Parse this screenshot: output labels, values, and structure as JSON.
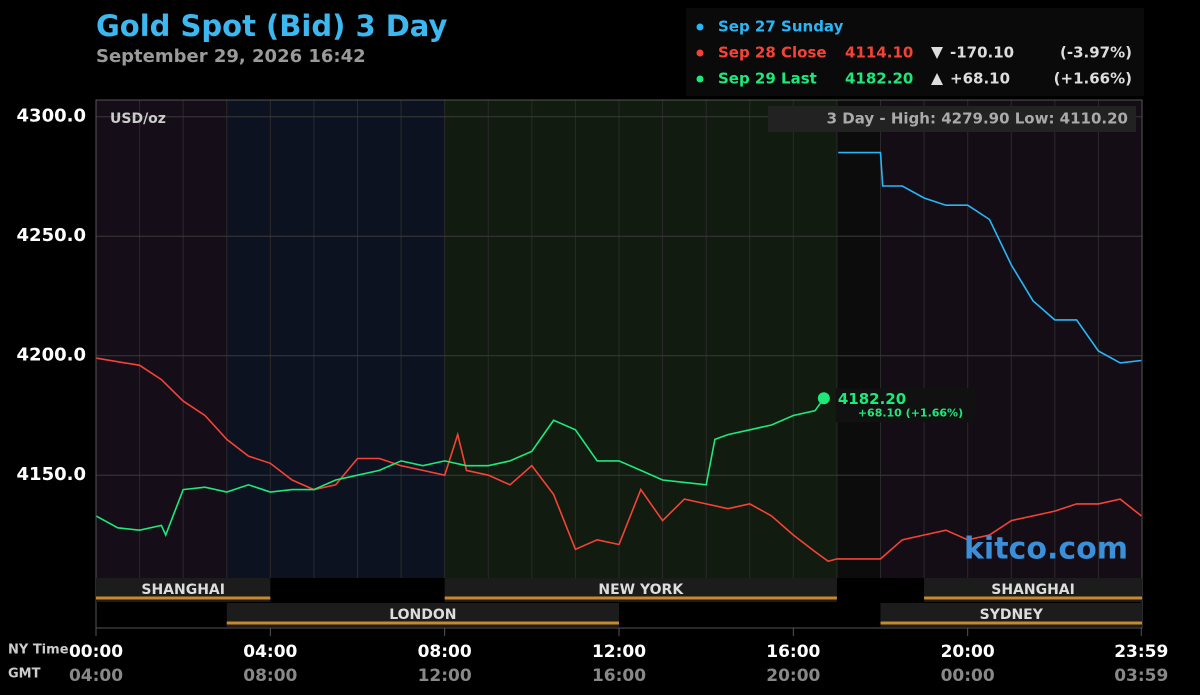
{
  "chart_data": {
    "type": "line",
    "title": "Gold Spot (Bid) 3 Day",
    "subtitle": "September 29, 2026 16:42",
    "unit_label": "USD/oz",
    "range_note": "3 Day - High: 4279.90  Low: 4110.20",
    "watermark": "kitco.com",
    "x_axis_label": "NY Time",
    "x2_axis_label": "GMT",
    "last_label": "4182.20",
    "last_change_label": "+68.10 (+1.66%)",
    "xlim": [
      0,
      24
    ],
    "ylim": [
      4107,
      4307
    ],
    "yticks": [
      {
        "value": 4300,
        "label": "4300.0"
      },
      {
        "value": 4250,
        "label": "4250.0"
      },
      {
        "value": 4200,
        "label": "4200.0"
      },
      {
        "value": 4150,
        "label": "4150.0"
      }
    ],
    "xticks": [
      {
        "value": 0,
        "label": "00:00"
      },
      {
        "value": 4,
        "label": "04:00"
      },
      {
        "value": 8,
        "label": "08:00"
      },
      {
        "value": 12,
        "label": "12:00"
      },
      {
        "value": 16,
        "label": "16:00"
      },
      {
        "value": 20,
        "label": "20:00"
      },
      {
        "value": 23.983,
        "label": "23:59"
      }
    ],
    "x2ticks": [
      "04:00",
      "08:00",
      "12:00",
      "16:00",
      "20:00",
      "00:00",
      "03:59"
    ],
    "grid": true,
    "sessions_top": [
      {
        "name": "SHANGHAI",
        "start": 0,
        "end": 4
      },
      {
        "name": "NEW YORK",
        "start": 8,
        "end": 17
      },
      {
        "name": "SHANGHAI",
        "start": 19,
        "end": 24
      }
    ],
    "sessions_bottom": [
      {
        "name": "LONDON",
        "start": 3,
        "end": 12
      },
      {
        "name": "SYDNEY",
        "start": 18,
        "end": 24
      }
    ],
    "series": [
      {
        "name": "Sep 27 Sunday",
        "color": "#29b6f6",
        "x": [
          17.03,
          18.0,
          18.05,
          18.5,
          19.0,
          19.5,
          20.0,
          20.5,
          21.0,
          21.5,
          22.0,
          22.5,
          23.0,
          23.5,
          23.983
        ],
        "values": [
          4285,
          4285,
          4271,
          4271,
          4266,
          4263,
          4263,
          4257,
          4238,
          4223,
          4215,
          4215,
          4202,
          4197,
          4198
        ]
      },
      {
        "name": "Sep 28 Close",
        "color": "#f44336",
        "price": "4114.10",
        "change": "-170.10",
        "change_pct": "(-3.97%)",
        "x": [
          0,
          1,
          1.5,
          2,
          2.5,
          3,
          3.5,
          4,
          4.5,
          5,
          5.5,
          6,
          6.5,
          7,
          7.5,
          8,
          8.3,
          8.5,
          9,
          9.5,
          10,
          10.5,
          11,
          11.5,
          12,
          12.5,
          13,
          13.5,
          14,
          14.5,
          15,
          15.5,
          16,
          16.5,
          16.8,
          17,
          18,
          18.5,
          19,
          19.5,
          20,
          20.5,
          21,
          21.5,
          22,
          22.5,
          23,
          23.5,
          23.983
        ],
        "values": [
          4199,
          4196,
          4190,
          4181,
          4175,
          4165,
          4158,
          4155,
          4148,
          4144,
          4146,
          4157,
          4157,
          4154,
          4152,
          4150,
          4167,
          4152,
          4150,
          4146,
          4154,
          4142,
          4119,
          4123,
          4121,
          4144,
          4131,
          4140,
          4138,
          4136,
          4138,
          4133,
          4125,
          4118,
          4114,
          4115,
          4115,
          4123,
          4125,
          4127,
          4123,
          4125,
          4131,
          4133,
          4135,
          4138,
          4138,
          4140,
          4133
        ]
      },
      {
        "name": "Sep 29 Last",
        "color": "#1de97a",
        "price": "4182.20",
        "change": "+68.10",
        "change_pct": "(+1.66%)",
        "x": [
          0,
          0.5,
          1,
          1.5,
          1.6,
          2,
          2.5,
          3,
          3.5,
          4,
          4.5,
          5,
          5.5,
          6,
          6.5,
          7,
          7.5,
          8,
          8.5,
          9,
          9.5,
          10,
          10.5,
          11,
          11.5,
          12,
          12.5,
          13,
          13.5,
          14,
          14.2,
          14.5,
          15,
          15.5,
          16,
          16.5,
          16.7
        ],
        "values": [
          4133,
          4128,
          4127,
          4129,
          4125,
          4144,
          4145,
          4143,
          4146,
          4143,
          4144,
          4144,
          4148,
          4150,
          4152,
          4156,
          4154,
          4156,
          4154,
          4154,
          4156,
          4160,
          4173,
          4169,
          4156,
          4156,
          4152,
          4148,
          4147,
          4146,
          4165,
          4167,
          4169,
          4171,
          4175,
          4177,
          4182.2
        ]
      }
    ]
  }
}
